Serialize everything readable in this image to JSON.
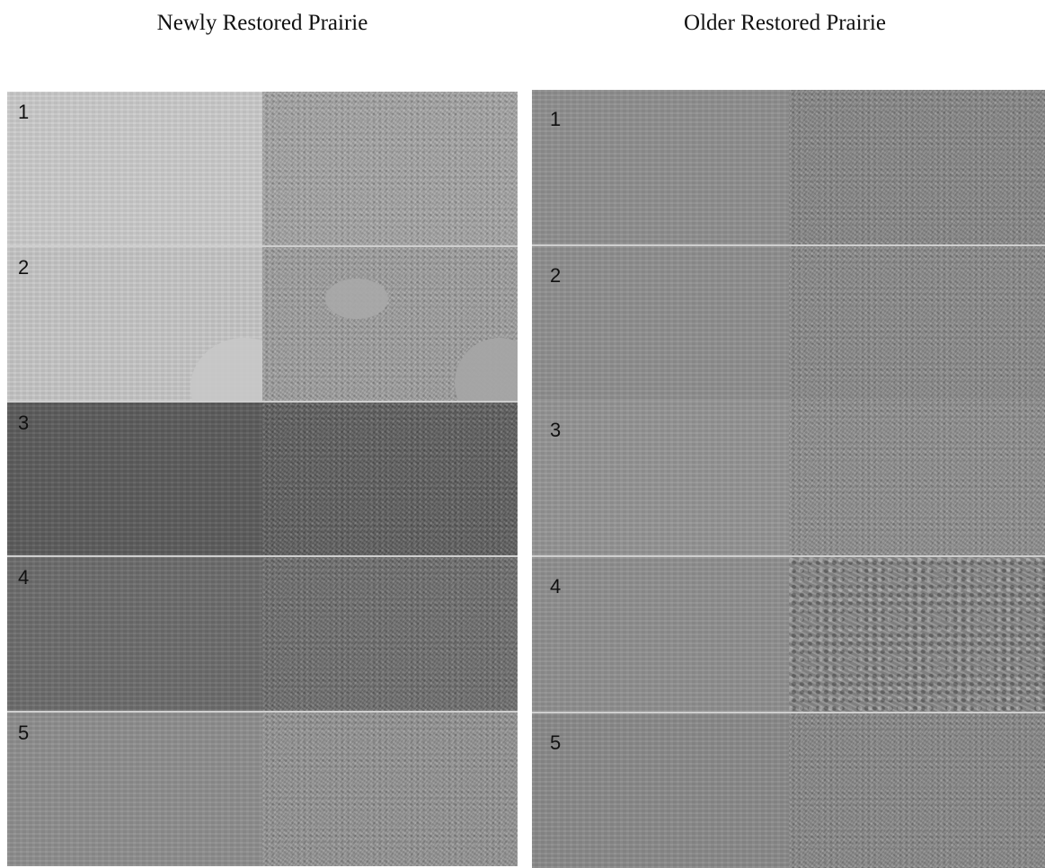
{
  "panels": {
    "left": {
      "title": "Newly Restored Prairie",
      "rows": [
        {
          "label": "1",
          "left_color": "#cbcbcb",
          "right_color": "#a9a9a9"
        },
        {
          "label": "2",
          "left_color": "#c6c6c6",
          "right_color": "#a3a3a3"
        },
        {
          "label": "3",
          "left_color": "#5c5c5c",
          "right_color": "#616161"
        },
        {
          "label": "4",
          "left_color": "#6c6c6c",
          "right_color": "#717171"
        },
        {
          "label": "5",
          "left_color": "#8e8e8e",
          "right_color": "#979797"
        }
      ]
    },
    "right": {
      "title": "Older Restored Prairie",
      "rows": [
        {
          "label": "1",
          "left_color": "#8f8f8f",
          "right_color": "#8b8b8b"
        },
        {
          "label": "2",
          "left_color": "#8f8f8f",
          "right_color": "#8e8e8e"
        },
        {
          "label": "3",
          "left_color": "#959595",
          "right_color": "#929292"
        },
        {
          "label": "4",
          "left_color": "#909090",
          "right_color": "#8d8d8d"
        },
        {
          "label": "5",
          "left_color": "#8a8a8a",
          "right_color": "#8c8c8c"
        }
      ]
    }
  }
}
